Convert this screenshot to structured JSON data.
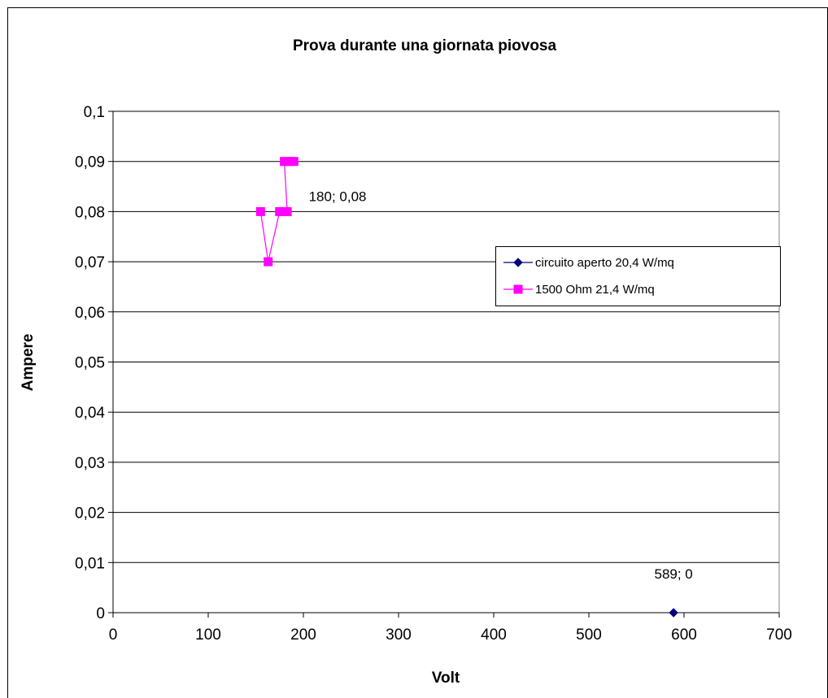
{
  "chart_data": {
    "type": "scatter",
    "title": "Prova durante una giornata piovosa",
    "xlabel": "Volt",
    "ylabel": "Ampere",
    "xlim": [
      0,
      700
    ],
    "ylim": [
      0,
      0.1
    ],
    "x_ticks": [
      "0",
      "100",
      "200",
      "300",
      "400",
      "500",
      "600",
      "700"
    ],
    "y_ticks": [
      "0",
      "0,01",
      "0,02",
      "0,03",
      "0,04",
      "0,05",
      "0,06",
      "0,07",
      "0,08",
      "0,09",
      "0,1"
    ],
    "grid": "horizontal",
    "legend_position": "right",
    "series": [
      {
        "name": "circuito aperto 20,4 W/mq",
        "color": "#000080",
        "marker": "diamond",
        "points": [
          [
            589,
            0
          ]
        ]
      },
      {
        "name": "1500 Ohm 21,4 W/mq",
        "color": "#ff00ff",
        "marker": "square",
        "points": [
          [
            155,
            0.08
          ],
          [
            163,
            0.07
          ],
          [
            175,
            0.08
          ],
          [
            180,
            0.08
          ],
          [
            183,
            0.08
          ],
          [
            180,
            0.09
          ],
          [
            185,
            0.09
          ],
          [
            190,
            0.09
          ]
        ]
      }
    ],
    "annotations": [
      {
        "text": "180; 0,08",
        "x": 180,
        "y": 0.08
      },
      {
        "text": "589; 0",
        "x": 589,
        "y": 0
      }
    ]
  }
}
